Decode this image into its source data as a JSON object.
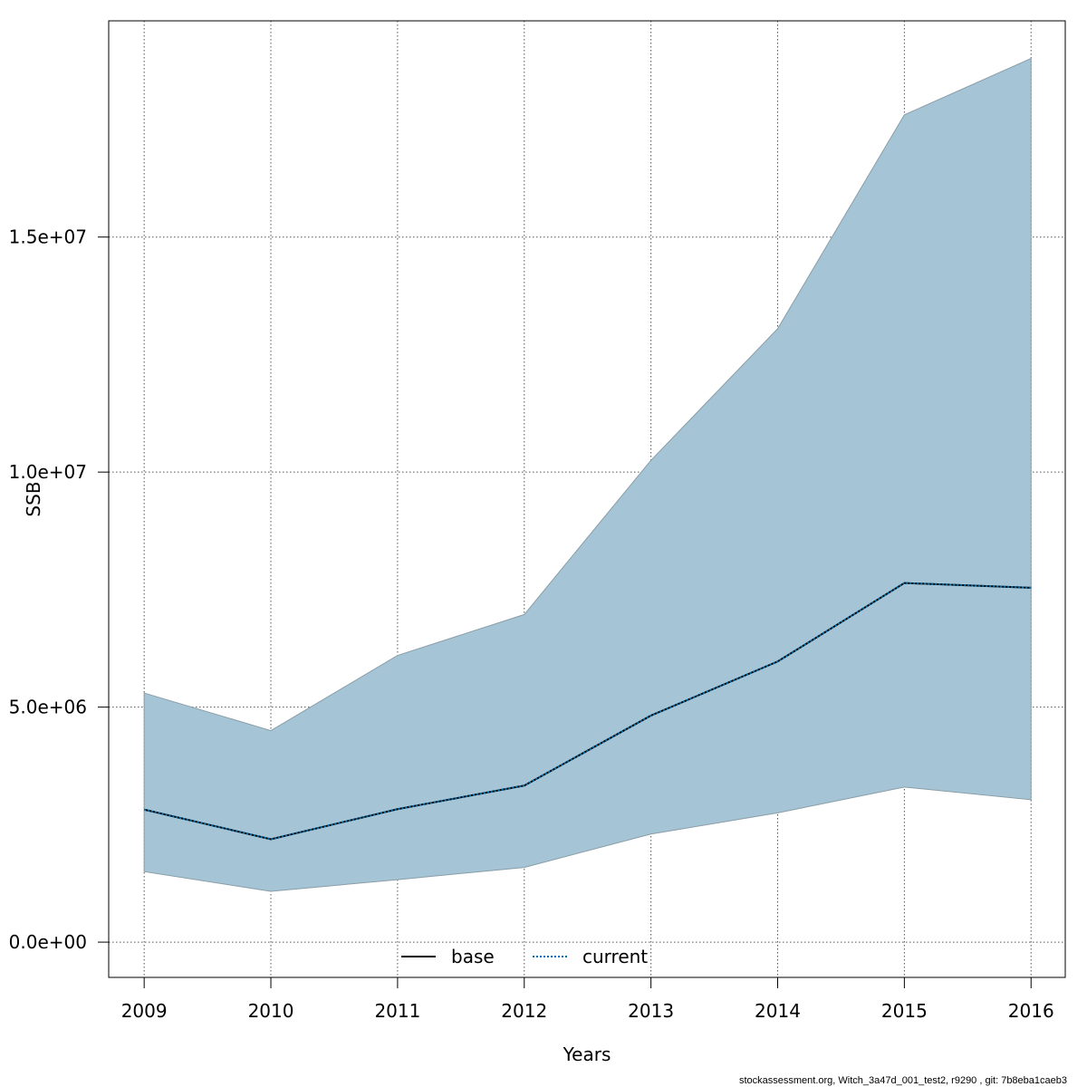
{
  "chart_data": {
    "type": "area",
    "xlabel": "Years",
    "ylabel": "SSB",
    "x": [
      2009,
      2010,
      2011,
      2012,
      2013,
      2014,
      2015,
      2016
    ],
    "x_tick_labels": [
      "2009",
      "2010",
      "2011",
      "2012",
      "2013",
      "2014",
      "2015",
      "2016"
    ],
    "y_ticks": [
      0,
      5000000,
      10000000,
      15000000
    ],
    "y_tick_labels": [
      "0.0e+00",
      "5.0e+06",
      "1.0e+07",
      "1.5e+07"
    ],
    "xlim": [
      2008.72,
      2016.27
    ],
    "ylim": [
      -750000,
      19600000
    ],
    "grid": true,
    "legend_position": "bottom-center",
    "band": {
      "lower": [
        1500000,
        1080000,
        1330000,
        1590000,
        2300000,
        2750000,
        3300000,
        3030000
      ],
      "upper": [
        5300000,
        4500000,
        6100000,
        6970000,
        10250000,
        13050000,
        17600000,
        18800000
      ],
      "color": "#a5c4d5"
    },
    "series": [
      {
        "name": "base",
        "values": [
          2820000,
          2190000,
          2830000,
          3330000,
          4820000,
          5970000,
          7640000,
          7540000
        ],
        "color": "#000000",
        "style": "solid"
      },
      {
        "name": "current",
        "values": [
          2820000,
          2190000,
          2830000,
          3330000,
          4820000,
          5970000,
          7640000,
          7540000
        ],
        "color": "#0072b2",
        "style": "dotted"
      }
    ]
  },
  "footer": "stockassessment.org, Witch_3a47d_001_test2, r9290 , git: 7b8eba1caeb3"
}
